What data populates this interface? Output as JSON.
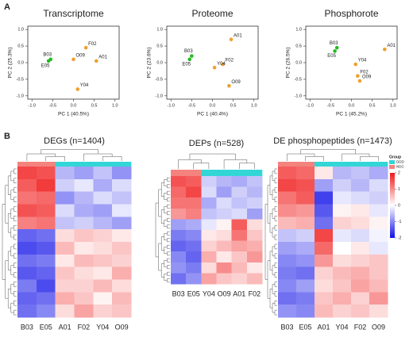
{
  "panel_labels": [
    "A",
    "B"
  ],
  "chart_data": [
    {
      "type": "scatter",
      "title": "Transcriptome",
      "xlabel": "PC 1 (40.5%)",
      "ylabel": "PC 2 (25.3%)",
      "xlim": [
        -1.1,
        1.1
      ],
      "ylim": [
        -1.1,
        1.1
      ],
      "xticks": [
        {
          "value": -1,
          "label": "-1.0"
        },
        -0.5,
        {
          "value": 0,
          "label": "0.0"
        },
        0.5,
        {
          "value": 1,
          "label": "1.0"
        }
      ],
      "yticks": [
        {
          "value": -1,
          "label": "-1.0"
        },
        -0.5,
        {
          "value": 0,
          "label": "0.0"
        },
        0.5,
        {
          "value": 1,
          "label": "1.0"
        }
      ],
      "series": [
        {
          "color": "#22bb22",
          "labels": [
            "B03",
            "E05"
          ],
          "x": [
            -0.55,
            -0.6
          ],
          "y": [
            0.1,
            0.05
          ]
        },
        {
          "color": "#f0a02c",
          "labels": [
            "O09",
            "F02",
            "A01",
            "Y04"
          ],
          "x": [
            0.0,
            0.3,
            0.55,
            0.1
          ],
          "y": [
            0.1,
            0.45,
            0.05,
            -0.8
          ]
        }
      ]
    },
    {
      "type": "scatter",
      "title": "Proteome",
      "xlabel": "PC 1 (40.4%)",
      "ylabel": "PC 2 (23.6%)",
      "xlim": [
        -1.1,
        1.1
      ],
      "ylim": [
        -1.1,
        1.1
      ],
      "xticks": [
        {
          "value": -1,
          "label": "-1.0"
        },
        -0.5,
        {
          "value": 0,
          "label": "0.0"
        },
        0.5,
        {
          "value": 1,
          "label": "1.0"
        }
      ],
      "yticks": [
        {
          "value": -1,
          "label": "-1.0"
        },
        -0.5,
        {
          "value": 0,
          "label": "0.0"
        },
        0.5,
        {
          "value": 1,
          "label": "1.0"
        }
      ],
      "series": [
        {
          "color": "#22bb22",
          "labels": [
            "B03",
            "E05"
          ],
          "x": [
            -0.5,
            -0.55
          ],
          "y": [
            0.2,
            0.1
          ]
        },
        {
          "color": "#f0a02c",
          "labels": [
            "A01",
            "F02",
            "Y04",
            "O09"
          ],
          "x": [
            0.45,
            0.25,
            0.05,
            0.4
          ],
          "y": [
            0.7,
            -0.05,
            -0.15,
            -0.7
          ]
        }
      ]
    },
    {
      "type": "scatter",
      "title": "Phosphorote",
      "xlabel": "PC 1 (45.2%)",
      "ylabel": "PC 2 (26.5%)",
      "xlim": [
        -1.1,
        1.1
      ],
      "ylim": [
        -1.1,
        1.1
      ],
      "xticks": [
        {
          "value": -1,
          "label": "-1.0"
        },
        -0.5,
        {
          "value": 0,
          "label": "0.0"
        },
        0.5,
        {
          "value": 1,
          "label": "1.0"
        }
      ],
      "yticks": [
        {
          "value": -1,
          "label": "-1.0"
        },
        -0.5,
        {
          "value": 0,
          "label": "0.0"
        },
        0.5,
        {
          "value": 1,
          "label": "1.0"
        }
      ],
      "series": [
        {
          "color": "#22bb22",
          "labels": [
            "B03",
            "E05"
          ],
          "x": [
            -0.35,
            -0.4
          ],
          "y": [
            0.45,
            0.35
          ]
        },
        {
          "color": "#f0a02c",
          "labels": [
            "A01",
            "Y04",
            "F02",
            "O09"
          ],
          "x": [
            0.8,
            0.1,
            0.15,
            0.2
          ],
          "y": [
            0.4,
            -0.05,
            -0.4,
            -0.55
          ]
        }
      ]
    },
    {
      "type": "heatmap",
      "title": "DEGs (n=1404)",
      "columns": [
        "B03",
        "E05",
        "A01",
        "F02",
        "Y04",
        "O09"
      ],
      "column_groups": [
        "NDC",
        "NDC",
        "DDD",
        "DDD",
        "DDD",
        "DDD"
      ],
      "matrix": [
        [
          1.6,
          1.5,
          -0.6,
          -0.8,
          -0.5,
          -0.9
        ],
        [
          1.4,
          1.7,
          -0.4,
          -0.2,
          -0.7,
          -0.3
        ],
        [
          1.2,
          1.3,
          -0.9,
          -0.6,
          -0.3,
          -0.5
        ],
        [
          1.5,
          1.4,
          -0.3,
          -0.7,
          -0.8,
          -0.2
        ],
        [
          1.1,
          1.2,
          -0.5,
          -0.4,
          -0.6,
          -0.8
        ],
        [
          -1.3,
          -1.2,
          0.3,
          0.5,
          0.4,
          0.2
        ],
        [
          -1.5,
          -1.4,
          0.6,
          0.2,
          0.3,
          0.5
        ],
        [
          -1.2,
          -1.1,
          0.2,
          0.6,
          0.5,
          0.4
        ],
        [
          -1.4,
          -1.3,
          0.5,
          0.3,
          0.2,
          0.7
        ],
        [
          -1.1,
          -1.5,
          0.4,
          0.4,
          0.6,
          0.3
        ],
        [
          -1.3,
          -1.2,
          0.7,
          0.5,
          0.1,
          0.6
        ],
        [
          -1.2,
          -1.0,
          0.3,
          0.8,
          0.4,
          0.5
        ]
      ]
    },
    {
      "type": "heatmap",
      "title": "DEPs (n=528)",
      "columns": [
        "B03",
        "E05",
        "Y04",
        "O09",
        "A01",
        "F02"
      ],
      "column_groups": [
        "NDC",
        "NDC",
        "DDD",
        "DDD",
        "DDD",
        "DDD"
      ],
      "matrix": [
        [
          1.5,
          1.4,
          -0.4,
          -0.6,
          -0.7,
          -0.5
        ],
        [
          1.3,
          1.6,
          -0.3,
          -0.8,
          -0.4,
          -0.6
        ],
        [
          1.2,
          1.2,
          -0.7,
          -0.3,
          -0.5,
          -0.4
        ],
        [
          0.9,
          1.1,
          -0.5,
          -0.4,
          -0.3,
          -0.8
        ],
        [
          -0.8,
          -0.7,
          -0.2,
          0.1,
          1.4,
          0.3
        ],
        [
          -1.1,
          -1.0,
          0.2,
          0.3,
          1.2,
          0.5
        ],
        [
          -1.3,
          -1.2,
          0.4,
          0.6,
          0.8,
          0.7
        ],
        [
          -1.0,
          -1.3,
          0.7,
          0.2,
          0.5,
          0.9
        ],
        [
          -0.9,
          -1.1,
          0.3,
          1.0,
          0.6,
          0.2
        ],
        [
          -1.2,
          -0.9,
          0.8,
          0.5,
          0.4,
          0.6
        ]
      ]
    },
    {
      "type": "heatmap",
      "title": "DE phosphopeptides (n=1473)",
      "columns": [
        "B03",
        "E05",
        "A01",
        "Y04",
        "F02",
        "O09"
      ],
      "column_groups": [
        "NDC",
        "NDC",
        "DDD",
        "DDD",
        "DDD",
        "DDD"
      ],
      "matrix": [
        [
          1.4,
          1.3,
          0.2,
          -0.6,
          -0.5,
          -0.7
        ],
        [
          1.6,
          1.5,
          -0.8,
          -0.4,
          -0.6,
          -0.3
        ],
        [
          1.2,
          1.4,
          -1.6,
          -0.2,
          -0.3,
          -0.4
        ],
        [
          1.0,
          0.9,
          -1.4,
          0.1,
          0.2,
          -0.2
        ],
        [
          0.6,
          0.7,
          -1.2,
          0.4,
          0.3,
          0.1
        ],
        [
          -0.5,
          -0.4,
          1.6,
          -0.2,
          -0.3,
          -0.1
        ],
        [
          -0.8,
          -0.7,
          1.3,
          0.0,
          0.2,
          -0.2
        ],
        [
          -1.0,
          -0.9,
          0.9,
          0.3,
          0.4,
          0.5
        ],
        [
          -1.1,
          -1.2,
          0.4,
          0.6,
          0.7,
          0.5
        ],
        [
          -1.0,
          -0.8,
          0.3,
          0.5,
          0.8,
          0.6
        ],
        [
          -1.2,
          -1.1,
          0.5,
          0.7,
          0.4,
          0.9
        ],
        [
          -0.9,
          -1.0,
          0.6,
          0.4,
          0.5,
          0.3
        ]
      ]
    }
  ],
  "group_legend": {
    "title": "Group",
    "entries": [
      {
        "name": "DDD",
        "color": "#33d6d6"
      },
      {
        "name": "NDC",
        "color": "#f4837d"
      }
    ]
  },
  "colorbar": {
    "clim": [
      -2,
      2
    ],
    "ticks": [
      2,
      1,
      0,
      -1,
      -2
    ],
    "low": "#1010e8",
    "mid": "#ffffff",
    "high": "#f01818"
  }
}
